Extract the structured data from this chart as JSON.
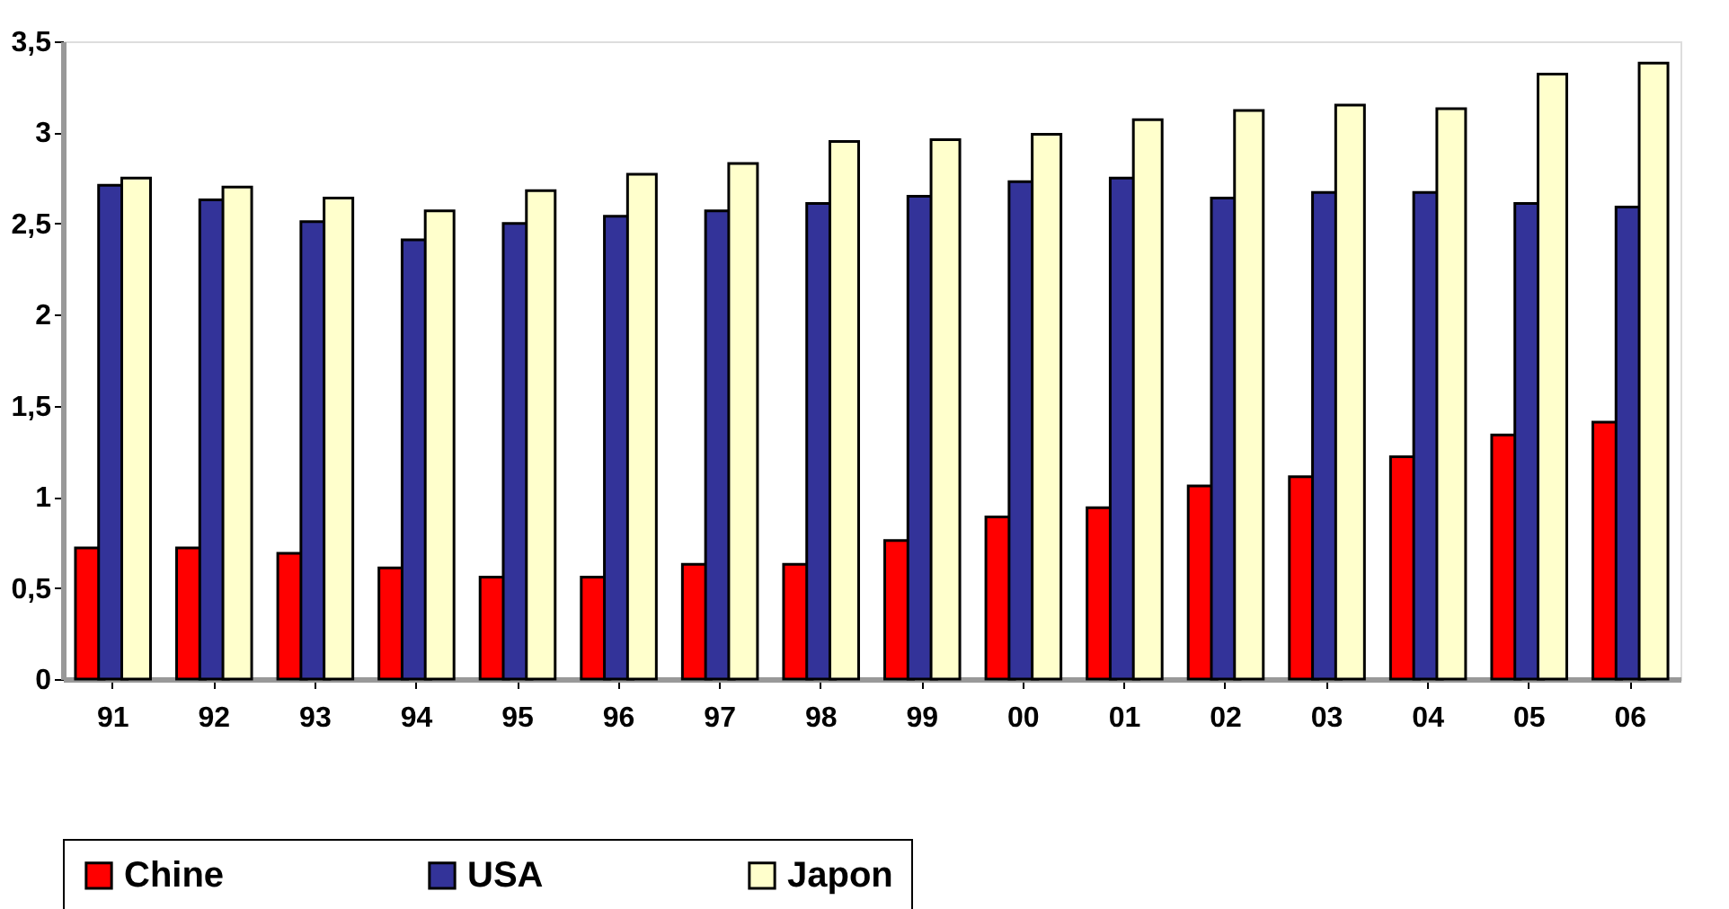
{
  "chart_data": {
    "type": "bar",
    "categories": [
      "91",
      "92",
      "93",
      "94",
      "95",
      "96",
      "97",
      "98",
      "99",
      "00",
      "01",
      "02",
      "03",
      "04",
      "05",
      "06"
    ],
    "series": [
      {
        "name": "Chine",
        "color": "#ff0000",
        "values": [
          0.72,
          0.72,
          0.69,
          0.61,
          0.56,
          0.56,
          0.63,
          0.63,
          0.76,
          0.89,
          0.94,
          1.06,
          1.11,
          1.22,
          1.34,
          1.41
        ]
      },
      {
        "name": "USA",
        "color": "#333399",
        "values": [
          2.71,
          2.63,
          2.51,
          2.41,
          2.5,
          2.54,
          2.57,
          2.61,
          2.65,
          2.73,
          2.75,
          2.64,
          2.67,
          2.67,
          2.61,
          2.59
        ]
      },
      {
        "name": "Japon",
        "color": "#ffffcc",
        "values": [
          2.75,
          2.7,
          2.64,
          2.57,
          2.68,
          2.77,
          2.83,
          2.95,
          2.96,
          2.99,
          3.07,
          3.12,
          3.15,
          3.13,
          3.32,
          3.38
        ]
      }
    ],
    "ylim": [
      0,
      3.5
    ],
    "yticks": [
      {
        "value": 0,
        "label": "0"
      },
      {
        "value": 0.5,
        "label": "0,5"
      },
      {
        "value": 1,
        "label": "1"
      },
      {
        "value": 1.5,
        "label": "1,5"
      },
      {
        "value": 2,
        "label": "2"
      },
      {
        "value": 2.5,
        "label": "2,5"
      },
      {
        "value": 3,
        "label": "3"
      },
      {
        "value": 3.5,
        "label": "3,5"
      }
    ],
    "grid": false,
    "legend": "bottom"
  }
}
